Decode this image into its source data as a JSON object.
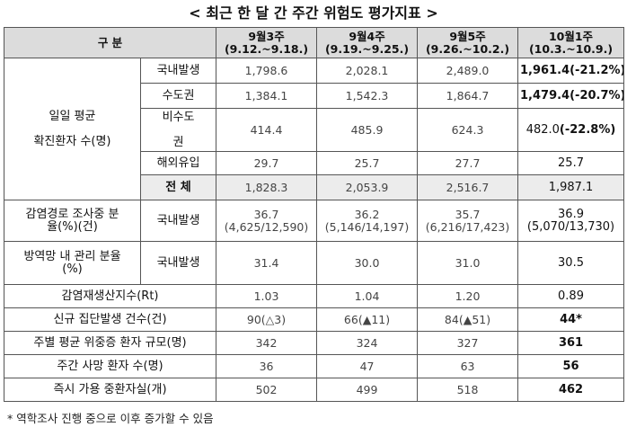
{
  "title": "< 최근 한 달 간 주간 위험도 평가지표 >",
  "header": {
    "category": "구 분",
    "weeks": [
      {
        "week": "9월3주",
        "range": "(9.12.~9.18.)"
      },
      {
        "week": "9월4주",
        "range": "(9.19.~9.25.)"
      },
      {
        "week": "9월5주",
        "range": "(9.26.~10.2.)"
      },
      {
        "week": "10월1주",
        "range": "(10.3.~10.9.)"
      }
    ]
  },
  "daily": {
    "label_line1": "일일 평균",
    "label_line2": "확진환자 수(명)",
    "domestic": {
      "label": "국내발생",
      "values": [
        "1,798.6",
        "2,028.1",
        "2,489.0"
      ],
      "last": "1,961.4(-21.2%)"
    },
    "capital": {
      "label": "수도권",
      "values": [
        "1,384.1",
        "1,542.3",
        "1,864.7"
      ],
      "last": "1,479.4(-20.7%)"
    },
    "noncapital": {
      "label_line1": "비수도",
      "label_line2": "권",
      "values": [
        "414.4",
        "485.9",
        "624.3"
      ],
      "last_value": "482.0",
      "last_pct": "(-22.8%)"
    },
    "overseas": {
      "label": "해외유입",
      "values": [
        "29.7",
        "25.7",
        "27.7"
      ],
      "last": "25.7"
    },
    "total": {
      "label": "전 체",
      "values": [
        "1,828.3",
        "2,053.9",
        "2,516.7"
      ],
      "last": "1,987.1"
    }
  },
  "investigation": {
    "label_line1": "감염경로 조사중 분",
    "label_line2": "율(%)(건)",
    "sub": "국내발생",
    "values": [
      {
        "pct": "36.7",
        "count": "(4,625/12,590)"
      },
      {
        "pct": "36.2",
        "count": "(5,146/14,197)"
      },
      {
        "pct": "35.7",
        "count": "(6,216/17,423)"
      },
      {
        "pct": "36.9",
        "count": "(5,070/13,730)"
      }
    ]
  },
  "managed": {
    "label_line1": "방역망 내 관리 분율",
    "label_line2": "(%)",
    "sub": "국내발생",
    "values": [
      "31.4",
      "30.0",
      "31.0"
    ],
    "last": "30.5"
  },
  "rt": {
    "label": "감염재생산지수(Rt)",
    "values": [
      "1.03",
      "1.04",
      "1.20"
    ],
    "last": "0.89"
  },
  "clusters": {
    "label": "신규 집단발생 건수(건)",
    "values": [
      "90(△3)",
      "66(▲11)",
      "84(▲51)"
    ],
    "last": "44*"
  },
  "severe": {
    "label": "주별 평균 위중증 환자 규모(명)",
    "values": [
      "342",
      "324",
      "327"
    ],
    "last": "361"
  },
  "deaths": {
    "label": "주간 사망 환자 수(명)",
    "values": [
      "36",
      "47",
      "63"
    ],
    "last": "56"
  },
  "beds": {
    "label": "즉시 가용 중환자실(개)",
    "values": [
      "502",
      "499",
      "518"
    ],
    "last": "462"
  },
  "footnote": "* 역학조사 진행 중으로 이후 증가할 수 있음"
}
